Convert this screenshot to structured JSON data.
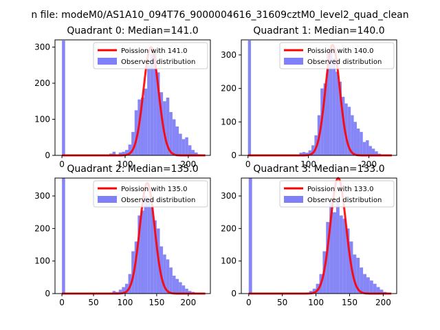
{
  "figure_title": "n file: modeM0/AS1A10_094T76_9000004616_31609cztM0_level2_quad_clean",
  "chart_data": [
    {
      "type": "histogram",
      "title": "Quadrant 0: Median=141.0",
      "xlim": [
        -11,
        235
      ],
      "ylim": [
        0,
        320
      ],
      "xticks": [
        0,
        100,
        200
      ],
      "yticks": [
        0,
        100,
        200,
        300
      ],
      "legend": {
        "placement": "upper right",
        "entries": [
          "Poission with 141.0",
          "Observed distribution"
        ]
      },
      "poisson_mean": 141.0,
      "poisson_peak": 300,
      "bin_width": 5,
      "bins": [
        {
          "x": 0,
          "h": 318
        },
        {
          "x": 75,
          "h": 5
        },
        {
          "x": 80,
          "h": 10
        },
        {
          "x": 85,
          "h": 3
        },
        {
          "x": 90,
          "h": 8
        },
        {
          "x": 95,
          "h": 10
        },
        {
          "x": 100,
          "h": 15
        },
        {
          "x": 105,
          "h": 30
        },
        {
          "x": 110,
          "h": 65
        },
        {
          "x": 115,
          "h": 125
        },
        {
          "x": 120,
          "h": 155
        },
        {
          "x": 125,
          "h": 160
        },
        {
          "x": 130,
          "h": 185
        },
        {
          "x": 135,
          "h": 250
        },
        {
          "x": 140,
          "h": 280
        },
        {
          "x": 145,
          "h": 285
        },
        {
          "x": 150,
          "h": 230
        },
        {
          "x": 155,
          "h": 175
        },
        {
          "x": 160,
          "h": 150
        },
        {
          "x": 165,
          "h": 160
        },
        {
          "x": 170,
          "h": 120
        },
        {
          "x": 175,
          "h": 100
        },
        {
          "x": 180,
          "h": 80
        },
        {
          "x": 185,
          "h": 60
        },
        {
          "x": 190,
          "h": 45
        },
        {
          "x": 195,
          "h": 50
        },
        {
          "x": 200,
          "h": 28
        },
        {
          "x": 205,
          "h": 15
        },
        {
          "x": 210,
          "h": 8
        },
        {
          "x": 215,
          "h": 3
        }
      ]
    },
    {
      "type": "histogram",
      "title": "Quadrant 1: Median=140.0",
      "xlim": [
        -11,
        246
      ],
      "ylim": [
        0,
        345
      ],
      "xticks": [
        0,
        100,
        200
      ],
      "yticks": [
        0,
        100,
        200,
        300
      ],
      "legend": {
        "placement": "upper right",
        "entries": [
          "Poission with 140.0",
          "Observed distribution"
        ]
      },
      "poisson_mean": 140.0,
      "poisson_peak": 330,
      "bin_width": 5,
      "bins": [
        {
          "x": 0,
          "h": 343
        },
        {
          "x": 85,
          "h": 8
        },
        {
          "x": 90,
          "h": 10
        },
        {
          "x": 95,
          "h": 8
        },
        {
          "x": 100,
          "h": 15
        },
        {
          "x": 105,
          "h": 30
        },
        {
          "x": 110,
          "h": 60
        },
        {
          "x": 115,
          "h": 120
        },
        {
          "x": 120,
          "h": 200
        },
        {
          "x": 125,
          "h": 215
        },
        {
          "x": 130,
          "h": 315
        },
        {
          "x": 135,
          "h": 320
        },
        {
          "x": 140,
          "h": 290
        },
        {
          "x": 145,
          "h": 250
        },
        {
          "x": 150,
          "h": 220
        },
        {
          "x": 155,
          "h": 175
        },
        {
          "x": 160,
          "h": 155
        },
        {
          "x": 165,
          "h": 145
        },
        {
          "x": 170,
          "h": 120
        },
        {
          "x": 175,
          "h": 100
        },
        {
          "x": 180,
          "h": 80
        },
        {
          "x": 185,
          "h": 70
        },
        {
          "x": 190,
          "h": 40
        },
        {
          "x": 195,
          "h": 45
        },
        {
          "x": 200,
          "h": 28
        },
        {
          "x": 205,
          "h": 20
        },
        {
          "x": 210,
          "h": 12
        },
        {
          "x": 215,
          "h": 5
        }
      ]
    },
    {
      "type": "histogram",
      "title": "Quadrant 2: Median=135.0",
      "xlim": [
        -11,
        235
      ],
      "ylim": [
        0,
        355
      ],
      "xticks": [
        0,
        50,
        100,
        150,
        200
      ],
      "yticks": [
        0,
        100,
        200,
        300
      ],
      "legend": {
        "placement": "upper right",
        "entries": [
          "Poission with 135.0",
          "Observed distribution"
        ]
      },
      "poisson_mean": 135.0,
      "poisson_peak": 340,
      "bin_width": 5,
      "bins": [
        {
          "x": 0,
          "h": 355
        },
        {
          "x": 75,
          "h": 3
        },
        {
          "x": 80,
          "h": 8
        },
        {
          "x": 85,
          "h": 5
        },
        {
          "x": 90,
          "h": 12
        },
        {
          "x": 95,
          "h": 20
        },
        {
          "x": 100,
          "h": 30
        },
        {
          "x": 105,
          "h": 60
        },
        {
          "x": 110,
          "h": 130
        },
        {
          "x": 115,
          "h": 160
        },
        {
          "x": 120,
          "h": 240
        },
        {
          "x": 125,
          "h": 255
        },
        {
          "x": 130,
          "h": 300
        },
        {
          "x": 135,
          "h": 290
        },
        {
          "x": 140,
          "h": 265
        },
        {
          "x": 145,
          "h": 225
        },
        {
          "x": 150,
          "h": 200
        },
        {
          "x": 155,
          "h": 145
        },
        {
          "x": 160,
          "h": 120
        },
        {
          "x": 165,
          "h": 105
        },
        {
          "x": 170,
          "h": 80
        },
        {
          "x": 175,
          "h": 55
        },
        {
          "x": 180,
          "h": 45
        },
        {
          "x": 185,
          "h": 35
        },
        {
          "x": 190,
          "h": 25
        },
        {
          "x": 195,
          "h": 15
        },
        {
          "x": 200,
          "h": 8
        },
        {
          "x": 205,
          "h": 5
        },
        {
          "x": 210,
          "h": 3
        }
      ]
    },
    {
      "type": "histogram",
      "title": "Quadrant 3: Median=133.0",
      "xlim": [
        -11,
        220
      ],
      "ylim": [
        0,
        355
      ],
      "xticks": [
        0,
        50,
        100,
        150,
        200
      ],
      "yticks": [
        0,
        100,
        200,
        300
      ],
      "legend": {
        "placement": "upper right",
        "entries": [
          "Poission with 133.0",
          "Observed distribution"
        ]
      },
      "poisson_mean": 133.0,
      "poisson_peak": 355,
      "bin_width": 5,
      "bins": [
        {
          "x": 0,
          "h": 355
        },
        {
          "x": 85,
          "h": 3
        },
        {
          "x": 90,
          "h": 8
        },
        {
          "x": 95,
          "h": 15
        },
        {
          "x": 100,
          "h": 30
        },
        {
          "x": 105,
          "h": 60
        },
        {
          "x": 110,
          "h": 130
        },
        {
          "x": 115,
          "h": 220
        },
        {
          "x": 120,
          "h": 280
        },
        {
          "x": 125,
          "h": 250
        },
        {
          "x": 130,
          "h": 280
        },
        {
          "x": 135,
          "h": 240
        },
        {
          "x": 140,
          "h": 230
        },
        {
          "x": 145,
          "h": 200
        },
        {
          "x": 150,
          "h": 160
        },
        {
          "x": 155,
          "h": 120
        },
        {
          "x": 160,
          "h": 110
        },
        {
          "x": 165,
          "h": 80
        },
        {
          "x": 170,
          "h": 60
        },
        {
          "x": 175,
          "h": 50
        },
        {
          "x": 180,
          "h": 40
        },
        {
          "x": 185,
          "h": 30
        },
        {
          "x": 190,
          "h": 20
        },
        {
          "x": 195,
          "h": 12
        },
        {
          "x": 200,
          "h": 5
        }
      ]
    }
  ],
  "colors": {
    "histogram": "#7f7ff7",
    "poisson": "#ff0000",
    "axes": "#000000"
  }
}
